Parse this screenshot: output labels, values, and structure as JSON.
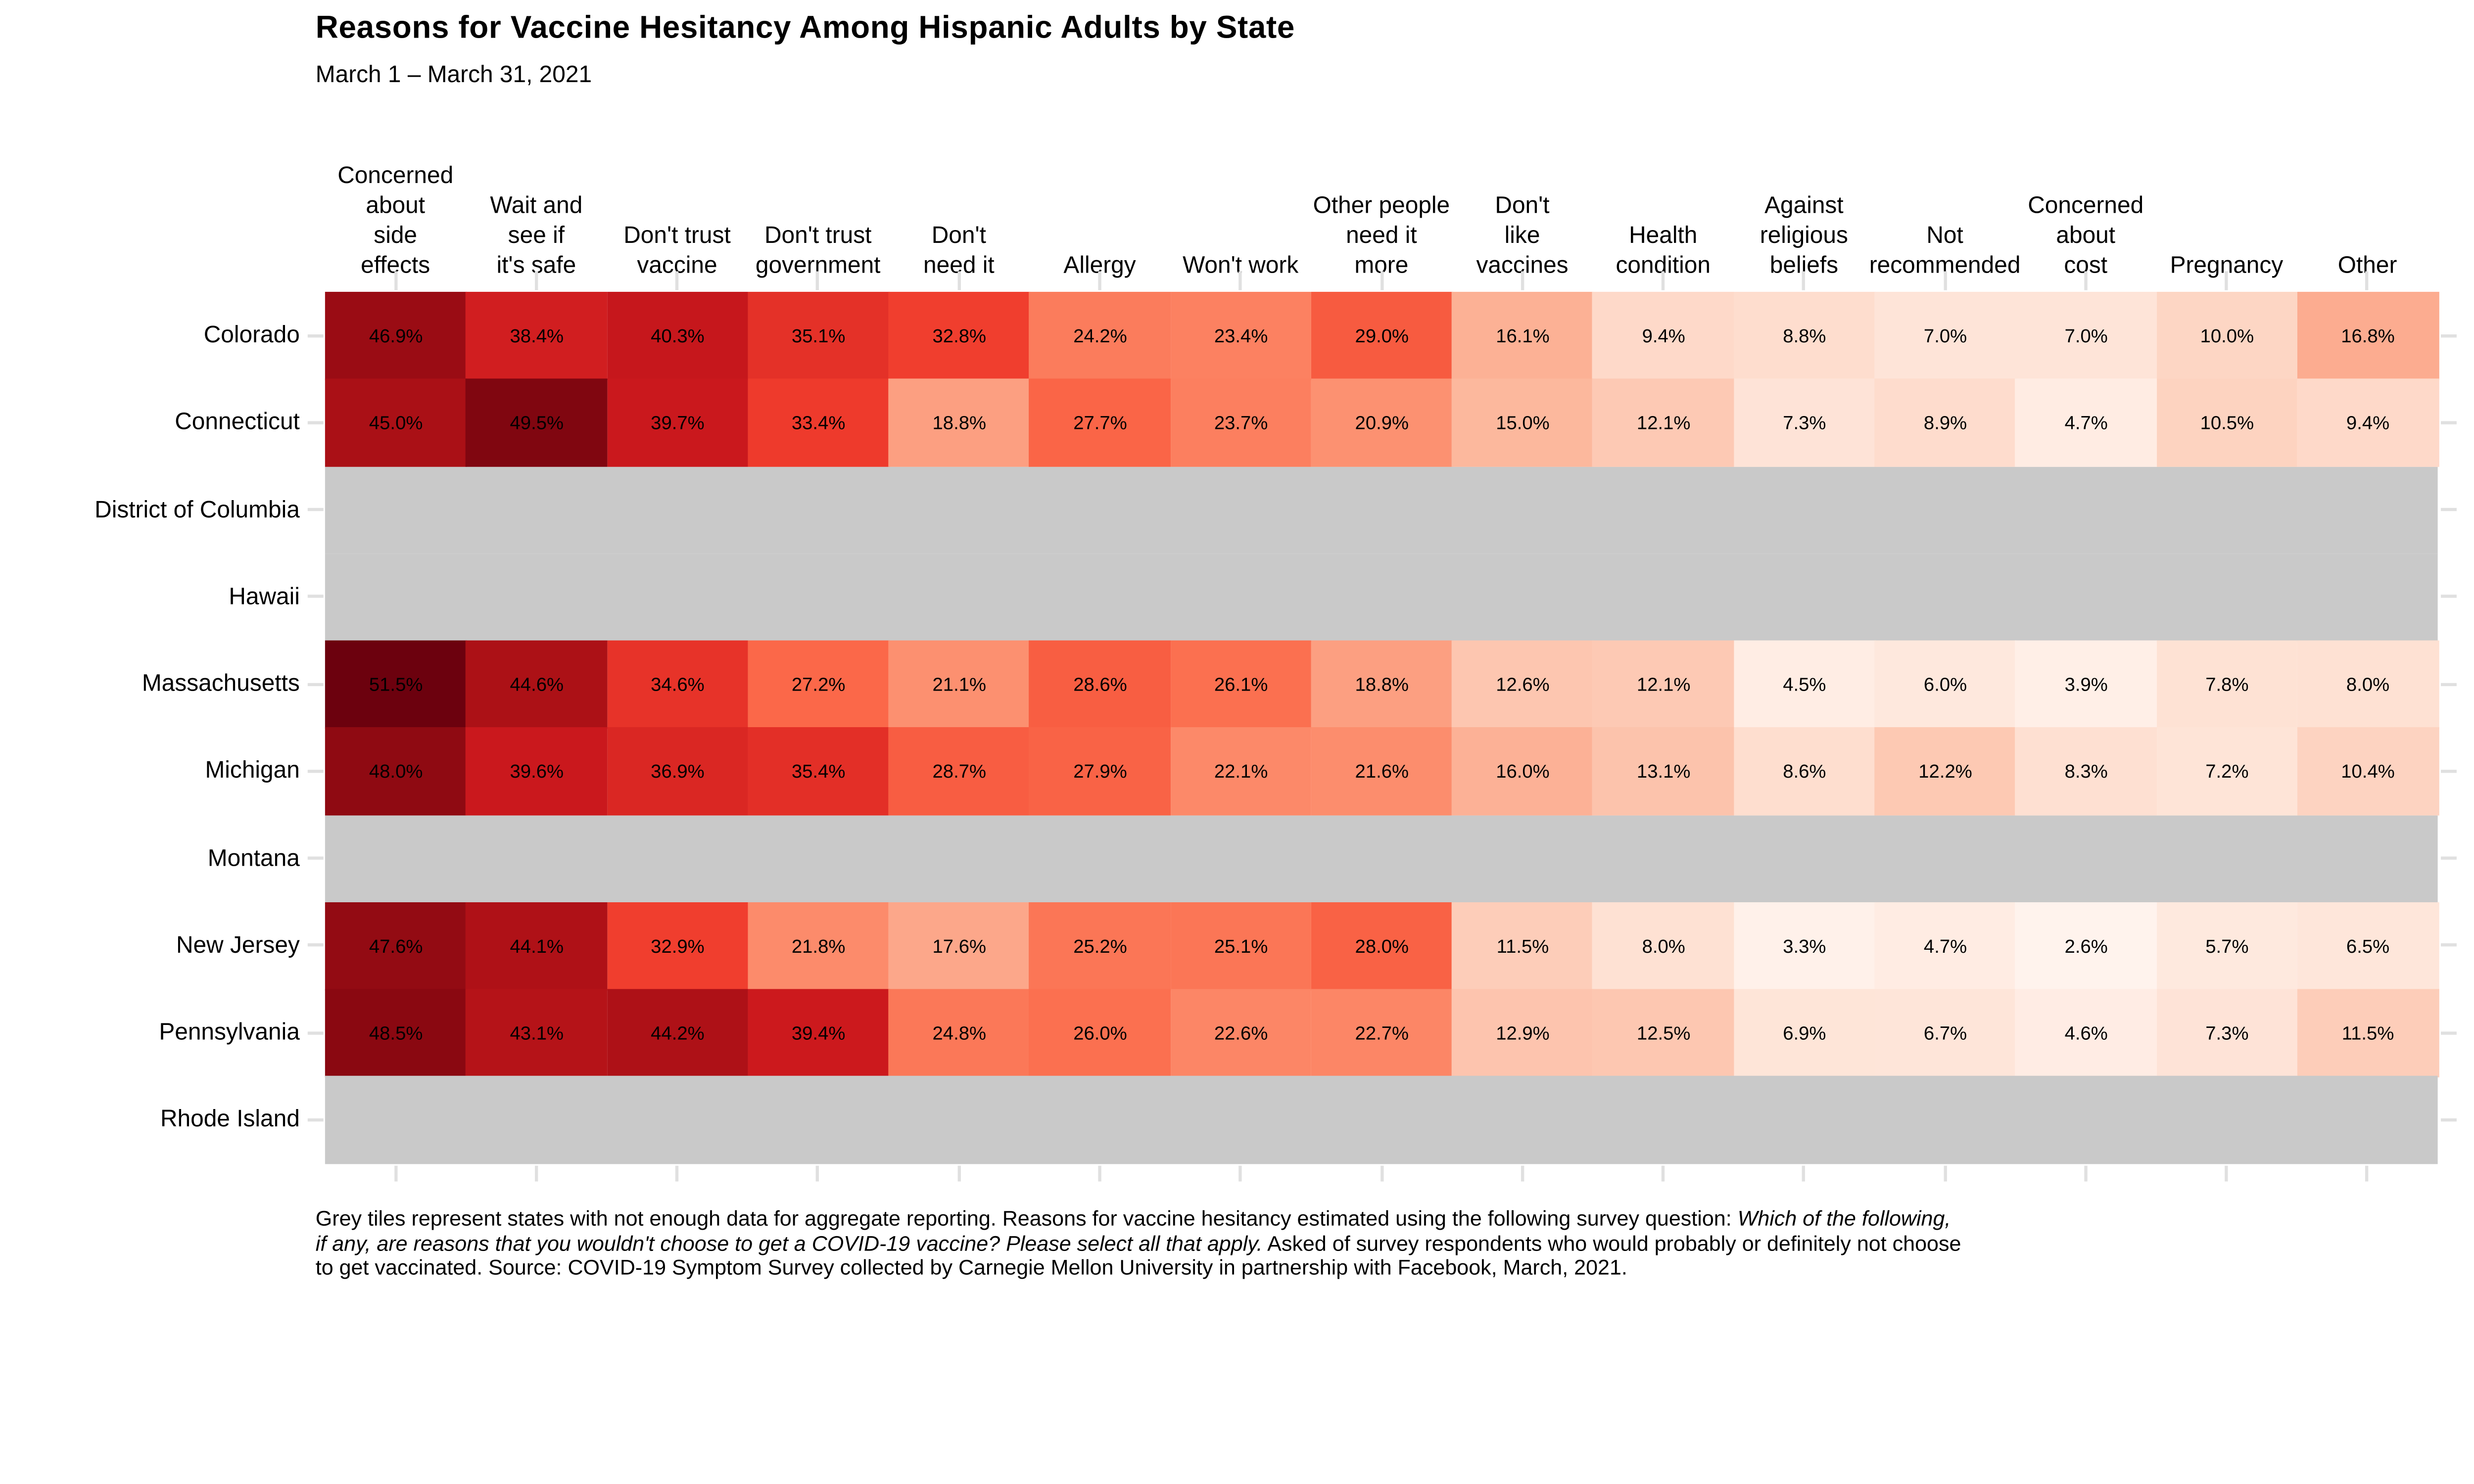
{
  "title": "Reasons for Vaccine Hesitancy Among Hispanic Adults by State",
  "subtitle": "March 1 – March 31, 2021",
  "chart_data": {
    "type": "heatmap",
    "value_suffix": "%",
    "value_decimals": 1,
    "legend": "none",
    "x_axis_position": "top",
    "columns": [
      "Concerned\nabout\nside\neffects",
      "Wait and\nsee if\nit's safe",
      "Don't trust\nvaccine",
      "Don't trust\ngovernment",
      "Don't\nneed it",
      "Allergy",
      "Won't work",
      "Other people\nneed it\nmore",
      "Don't\nlike\nvaccines",
      "Health\ncondition",
      "Against\nreligious\nbeliefs",
      "Not\nrecommended",
      "Concerned\nabout\ncost",
      "Pregnancy",
      "Other"
    ],
    "rows": [
      {
        "label": "Colorado",
        "values": [
          46.9,
          38.4,
          40.3,
          35.1,
          32.8,
          24.2,
          23.4,
          29.0,
          16.1,
          9.4,
          8.8,
          7.0,
          7.0,
          10.0,
          16.8
        ]
      },
      {
        "label": "Connecticut",
        "values": [
          45.0,
          49.5,
          39.7,
          33.4,
          18.8,
          27.7,
          23.7,
          20.9,
          15.0,
          12.1,
          7.3,
          8.9,
          4.7,
          10.5,
          9.4
        ]
      },
      {
        "label": "District of Columbia",
        "values": null
      },
      {
        "label": "Hawaii",
        "values": null
      },
      {
        "label": "Massachusetts",
        "values": [
          51.5,
          44.6,
          34.6,
          27.2,
          21.1,
          28.6,
          26.1,
          18.8,
          12.6,
          12.1,
          4.5,
          6.0,
          3.9,
          7.8,
          8.0
        ]
      },
      {
        "label": "Michigan",
        "values": [
          48.0,
          39.6,
          36.9,
          35.4,
          28.7,
          27.9,
          22.1,
          21.6,
          16.0,
          13.1,
          8.6,
          12.2,
          8.3,
          7.2,
          10.4
        ]
      },
      {
        "label": "Montana",
        "values": null
      },
      {
        "label": "New Jersey",
        "values": [
          47.6,
          44.1,
          32.9,
          21.8,
          17.6,
          25.2,
          25.1,
          28.0,
          11.5,
          8.0,
          3.3,
          4.7,
          2.6,
          5.7,
          6.5
        ]
      },
      {
        "label": "Pennsylvania",
        "values": [
          48.5,
          43.1,
          44.2,
          39.4,
          24.8,
          26.0,
          22.6,
          22.7,
          12.9,
          12.5,
          6.9,
          6.7,
          4.6,
          7.3,
          11.5
        ]
      },
      {
        "label": "Rhode Island",
        "values": null
      }
    ],
    "color_scale": {
      "palette": [
        "#fff5f0",
        "#fee0d2",
        "#fcbba1",
        "#fc9272",
        "#fb6a4a",
        "#ef3b2c",
        "#cb181d",
        "#a50f15",
        "#67000d"
      ],
      "domain": [
        2,
        52
      ]
    },
    "missing_color": "#c9c9c9",
    "gridline_color": "#e0e0e0",
    "cell_text_color": "#000000"
  },
  "footnote_lines": [
    [
      {
        "text": "Grey tiles represent states with not enough data for aggregate reporting. Reasons for vaccine hesitancy estimated using the following survey question: ",
        "italic": false
      },
      {
        "text": "Which of the following,",
        "italic": true
      }
    ],
    [
      {
        "text": "if any, are reasons that you wouldn't choose to get a COVID-19 vaccine? Please select all that apply.",
        "italic": true
      },
      {
        "text": " Asked of survey respondents who would probably or definitely not choose",
        "italic": false
      }
    ],
    [
      {
        "text": "to get vaccinated. Source: COVID-19 Symptom Survey collected by Carnegie Mellon University in partnership with Facebook, March, 2021.",
        "italic": false
      }
    ]
  ]
}
